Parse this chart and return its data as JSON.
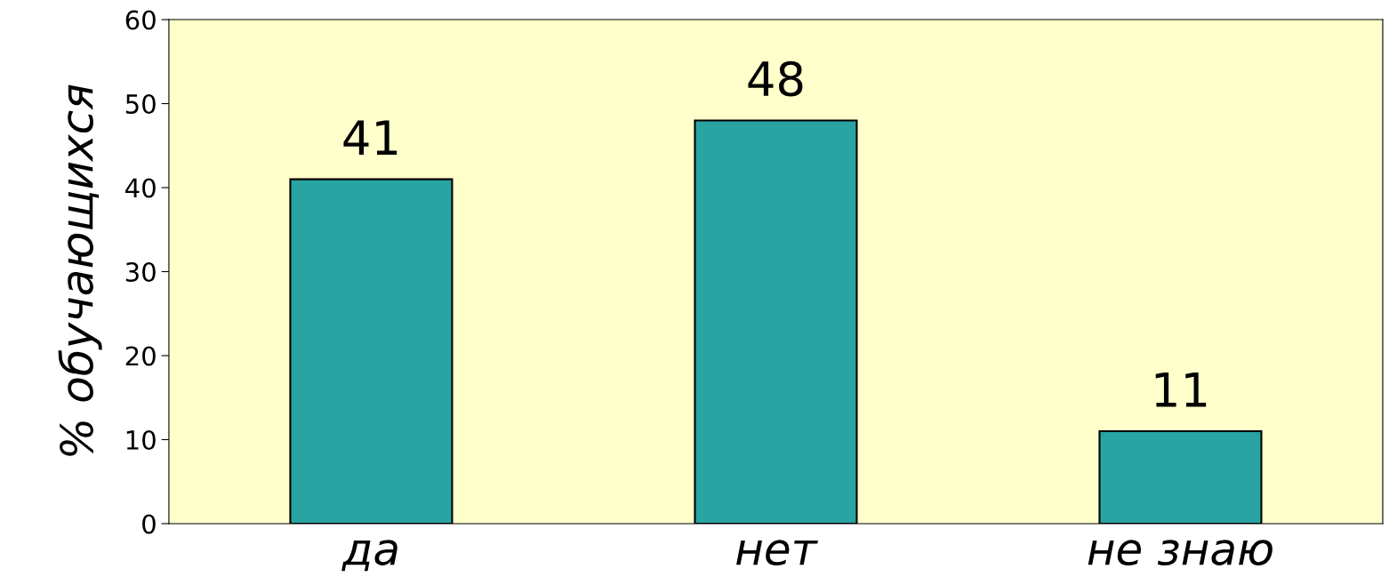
{
  "chart_data": {
    "type": "bar",
    "ylabel": "% обучающихся",
    "categories": [
      "да",
      "нет",
      "не знаю"
    ],
    "values": [
      41,
      48,
      11
    ],
    "color": "#28a4a2",
    "ylim": [
      0,
      60
    ],
    "yticks": [
      0,
      10,
      20,
      30,
      40,
      50,
      60
    ],
    "data_labels": true,
    "grid": false,
    "legend": false
  }
}
